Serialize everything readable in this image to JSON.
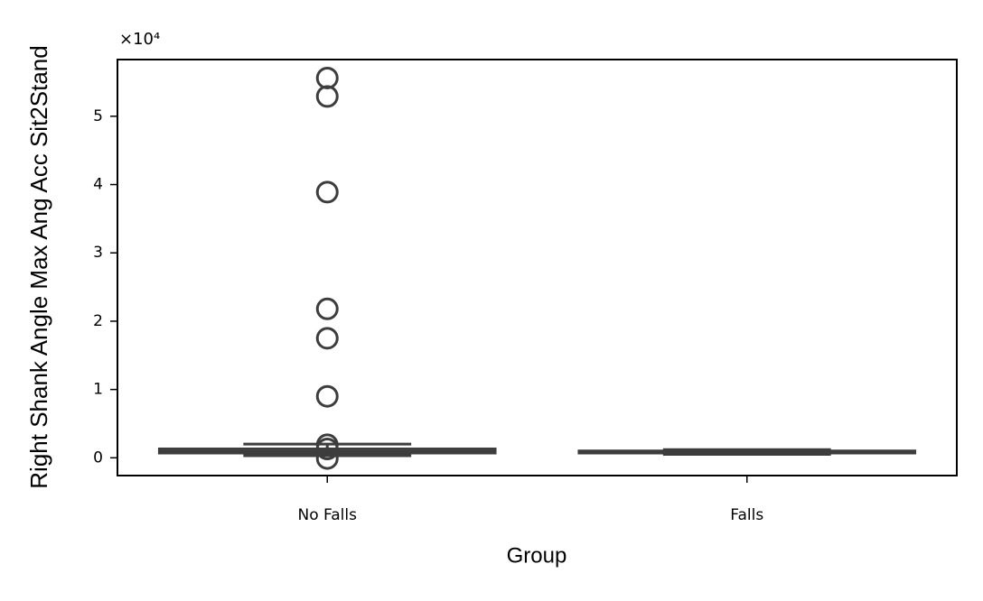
{
  "chart_data": {
    "type": "box",
    "y_label": "Right Shank Angle Max Ang Acc Sit2Stand",
    "x_label": "Group",
    "y_offset_label": "×10⁴",
    "categories": [
      "No Falls",
      "Falls"
    ],
    "boxes": [
      {
        "whislo": 0.03,
        "q1": 0.07,
        "med": 0.09,
        "q3": 0.13,
        "whishi": 0.2,
        "fliers": [
          5.56,
          5.29,
          3.89,
          2.18,
          1.75,
          0.9,
          0.19,
          0.13,
          -0.01
        ]
      },
      {
        "whislo": 0.05,
        "q1": 0.07,
        "med": 0.08,
        "q3": 0.1,
        "whishi": 0.12,
        "fliers": []
      }
    ],
    "color": "#3d3d3d",
    "ylim": [
      -0.26,
      5.83
    ],
    "yticks": [
      0,
      1,
      2,
      3,
      4,
      5
    ]
  }
}
